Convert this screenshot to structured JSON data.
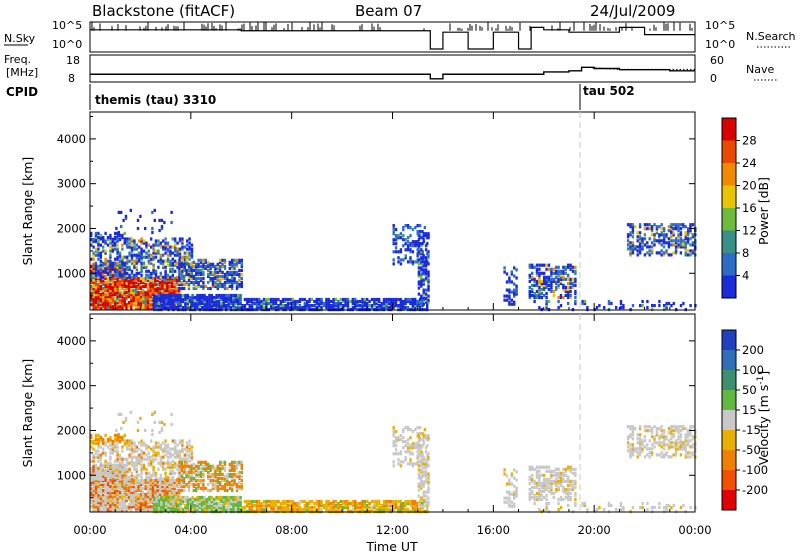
{
  "header": {
    "radar": "Blackstone (fitACF)",
    "beam": "Beam 07",
    "date": "24/Jul/2009"
  },
  "summary": {
    "nsky_label": "N.Sky",
    "nsearch_label": "N.Search",
    "freq_label_top": "Freq.",
    "freq_label_unit": "[MHz]",
    "nave_label": "Nave",
    "cpid_label": "CPID",
    "nsky_ticks": [
      "10^5",
      "10^0"
    ],
    "nsearch_ticks": [
      "10^5",
      "10^0"
    ],
    "freq_ticks": [
      "18",
      "8"
    ],
    "nave_ticks": [
      "60",
      "0"
    ],
    "cpid_segments": [
      {
        "label": "themis (tau) 3310",
        "start_hour": 0
      },
      {
        "label": "tau 502",
        "start_hour": 19.4
      }
    ]
  },
  "panel_power": {
    "ylabel": "Slant Range [km]",
    "colorbar_label": "Power [dB]",
    "colorbar_ticks": [
      "4",
      "8",
      "12",
      "16",
      "20",
      "24",
      "28"
    ],
    "colorbar_colors": [
      "#1b2bd8",
      "#2d6bc8",
      "#3a8f86",
      "#6dbb3c",
      "#e8c500",
      "#f08a00",
      "#e84a00",
      "#d80000"
    ]
  },
  "panel_velocity": {
    "ylabel": "Slant Range [km]",
    "colorbar_label_main": "Velocity [m s",
    "colorbar_label_sup": "-1",
    "colorbar_label_end": "]",
    "colorbar_ticks": [
      "200",
      "100",
      "50",
      "15",
      "-15",
      "-50",
      "-100",
      "-200"
    ],
    "colorbar_colors": [
      "#2040c0",
      "#2f6fb8",
      "#3d8f70",
      "#60b840",
      "#c8c8c8",
      "#e8b000",
      "#f08000",
      "#f05000",
      "#e00000"
    ]
  },
  "xaxis": {
    "label": "Time UT",
    "ticks": [
      "00:00",
      "04:00",
      "08:00",
      "12:00",
      "16:00",
      "20:00",
      "00:00"
    ]
  },
  "chart_data": [
    {
      "type": "line",
      "name": "summary-nsky-nsearch",
      "x": [
        0,
        1,
        2,
        3,
        4,
        5,
        6,
        7,
        8,
        9,
        10,
        11,
        12,
        13,
        13.5,
        14,
        15,
        16,
        17,
        17.5,
        18,
        19,
        20,
        21,
        22,
        23,
        24
      ],
      "series": [
        {
          "name": "N.Sky",
          "values": [
            4,
            4,
            4,
            4,
            4,
            4,
            3.8,
            3.8,
            3.8,
            3.8,
            3.8,
            3.8,
            3.8,
            3.8,
            0,
            3.5,
            0,
            3.5,
            0,
            4.5,
            4,
            3.5,
            3.5,
            4.5,
            3,
            3,
            3
          ]
        }
      ],
      "ylim": [
        0,
        5
      ]
    },
    {
      "type": "line",
      "name": "summary-freq-nave",
      "x": [
        0,
        2,
        4,
        6,
        8,
        10,
        12,
        13.5,
        14,
        16,
        17,
        18,
        19,
        19.5,
        20,
        21,
        22,
        23,
        24
      ],
      "series": [
        {
          "name": "Freq.",
          "values": [
            10.5,
            10.5,
            10.5,
            10.5,
            10.5,
            10.5,
            10.5,
            8.5,
            10.5,
            10.5,
            10.5,
            11.5,
            12,
            13.5,
            13,
            12.5,
            12.5,
            12,
            12
          ]
        }
      ],
      "ylim": [
        8,
        18
      ]
    },
    {
      "type": "heatmap",
      "name": "power-range-time",
      "x_hours": [
        0,
        24
      ],
      "ylim": [
        180,
        4600
      ],
      "ylabel": "Slant Range [km]",
      "xlabel": "Time UT",
      "colorbar": {
        "label": "Power [dB]",
        "ticks": [
          4,
          8,
          12,
          16,
          20,
          24,
          28
        ]
      }
    },
    {
      "type": "heatmap",
      "name": "velocity-range-time",
      "x_hours": [
        0,
        24
      ],
      "ylim": [
        180,
        4600
      ],
      "ylabel": "Slant Range [km]",
      "xlabel": "Time UT",
      "colorbar": {
        "label": "Velocity [m s-1]",
        "ticks": [
          200,
          100,
          50,
          15,
          -15,
          -50,
          -100,
          -200
        ]
      }
    }
  ]
}
